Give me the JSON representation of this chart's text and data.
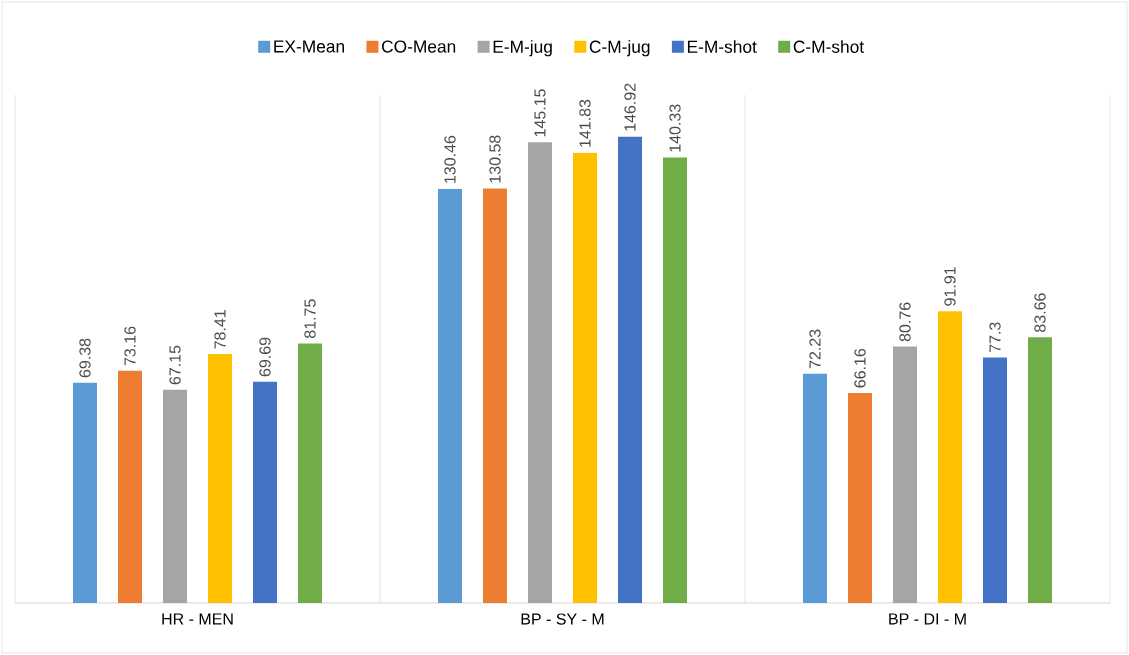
{
  "chart_data": {
    "type": "bar",
    "categories": [
      "HR - MEN",
      "BP - SY - M",
      "BP - DI - M"
    ],
    "series": [
      {
        "name": "EX-Mean",
        "color": "#5b9bd5",
        "values": [
          69.38,
          130.46,
          72.23
        ]
      },
      {
        "name": "CO-Mean",
        "color": "#ed7d31",
        "values": [
          73.16,
          130.58,
          66.16
        ]
      },
      {
        "name": "E-M-jug",
        "color": "#a5a5a5",
        "values": [
          67.15,
          145.15,
          80.76
        ]
      },
      {
        "name": "C-M-jug",
        "color": "#ffc000",
        "values": [
          78.41,
          141.83,
          91.91
        ]
      },
      {
        "name": "E-M-shot",
        "color": "#4472c4",
        "values": [
          69.69,
          146.92,
          77.3
        ]
      },
      {
        "name": "C-M-shot",
        "color": "#70ad47",
        "values": [
          81.75,
          140.33,
          83.66
        ]
      }
    ],
    "ylim": [
      0,
      160
    ],
    "data_labels": true,
    "grid": "x",
    "legend": "top"
  }
}
